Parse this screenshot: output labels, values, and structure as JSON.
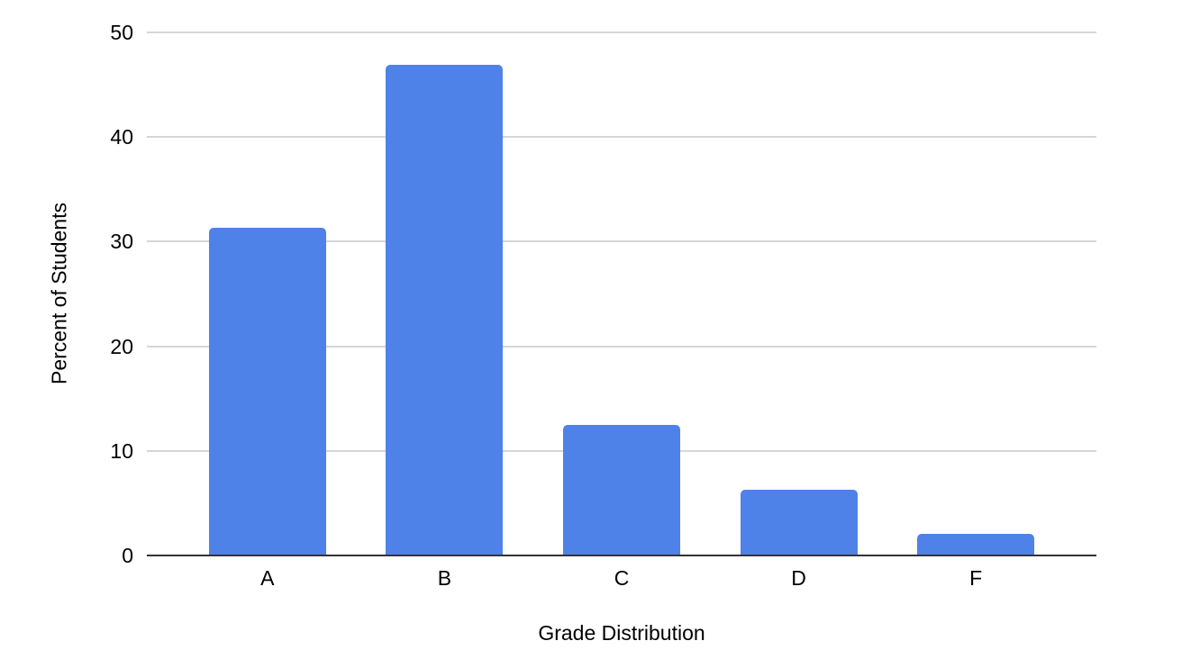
{
  "chart_data": {
    "type": "bar",
    "categories": [
      "A",
      "B",
      "C",
      "D",
      "F"
    ],
    "values": [
      31.3,
      46.9,
      12.5,
      6.3,
      2.1
    ],
    "title": "",
    "xlabel": "Grade Distribution",
    "ylabel": "Percent of Students",
    "ylim": [
      0,
      50
    ],
    "yticks": [
      0,
      10,
      20,
      30,
      40,
      50
    ],
    "grid": true,
    "legend": "none",
    "bar_color": "#4f82e8",
    "gridline_color": "#d6d6d6",
    "axis_line_color": "#333333",
    "text_color": "#000000",
    "background_color": "#ffffff"
  }
}
